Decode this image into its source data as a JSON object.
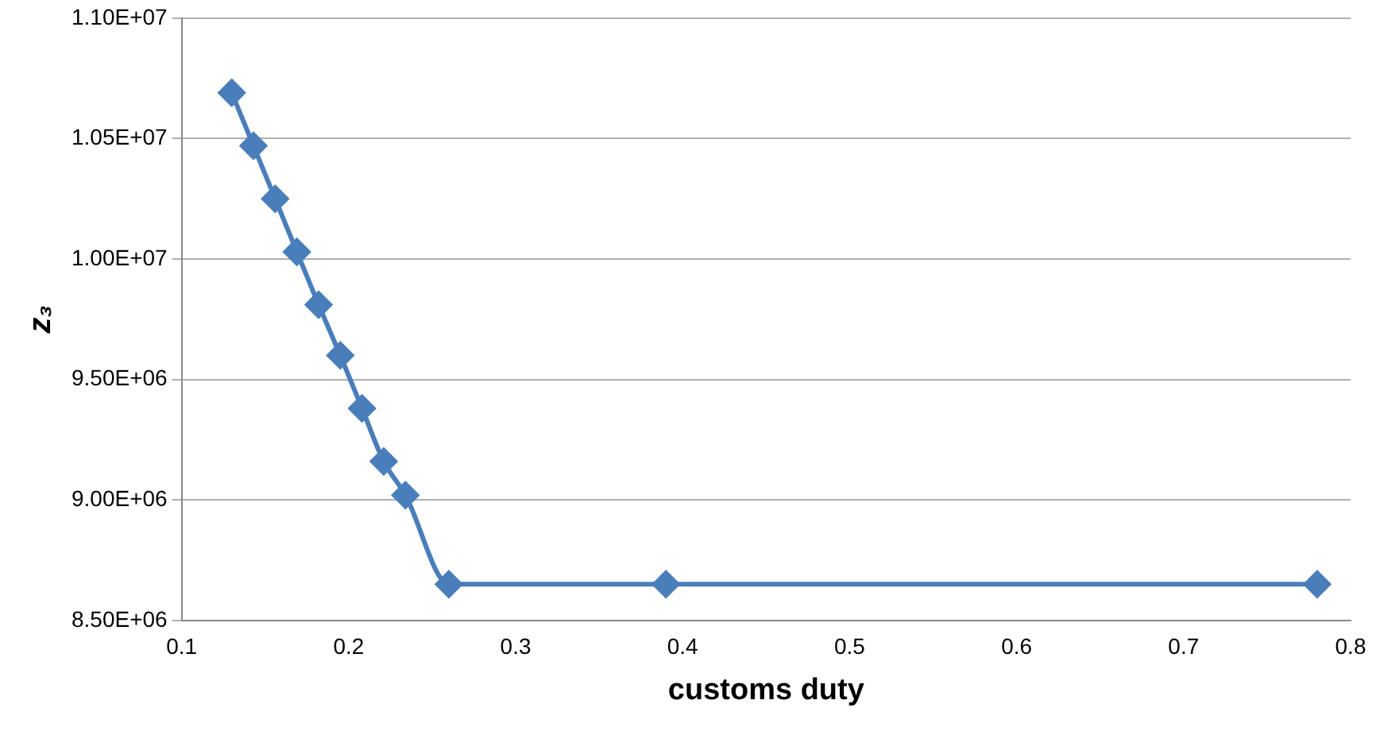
{
  "chart_data": {
    "type": "line",
    "xlabel": "customs duty",
    "ylabel": "z₃",
    "x": [
      0.13,
      0.143,
      0.156,
      0.169,
      0.182,
      0.195,
      0.208,
      0.221,
      0.234,
      0.26,
      0.39,
      0.78
    ],
    "series": [
      {
        "color": "#4a7ebb",
        "values": [
          10690000,
          10470000,
          10250000,
          10030000,
          9810000,
          9600000,
          9380000,
          9160000,
          9020000,
          8650000,
          8650000,
          8650000
        ]
      }
    ],
    "xlim": [
      0.1,
      0.8
    ],
    "xticks": [
      0.1,
      0.2,
      0.3,
      0.4,
      0.5,
      0.6,
      0.7,
      0.8
    ],
    "ylim": [
      8500000,
      11000000
    ],
    "yticks": [
      {
        "value": 8500000,
        "label": "8.50E+06"
      },
      {
        "value": 9000000,
        "label": "9.00E+06"
      },
      {
        "value": 9500000,
        "label": "9.50E+06"
      },
      {
        "value": 10000000,
        "label": "1.00E+07"
      },
      {
        "value": 10500000,
        "label": "1.05E+07"
      },
      {
        "value": 11000000,
        "label": "1.10E+07"
      }
    ],
    "grid": "y",
    "legend": false,
    "marker": "diamond",
    "line_style": "solid"
  }
}
